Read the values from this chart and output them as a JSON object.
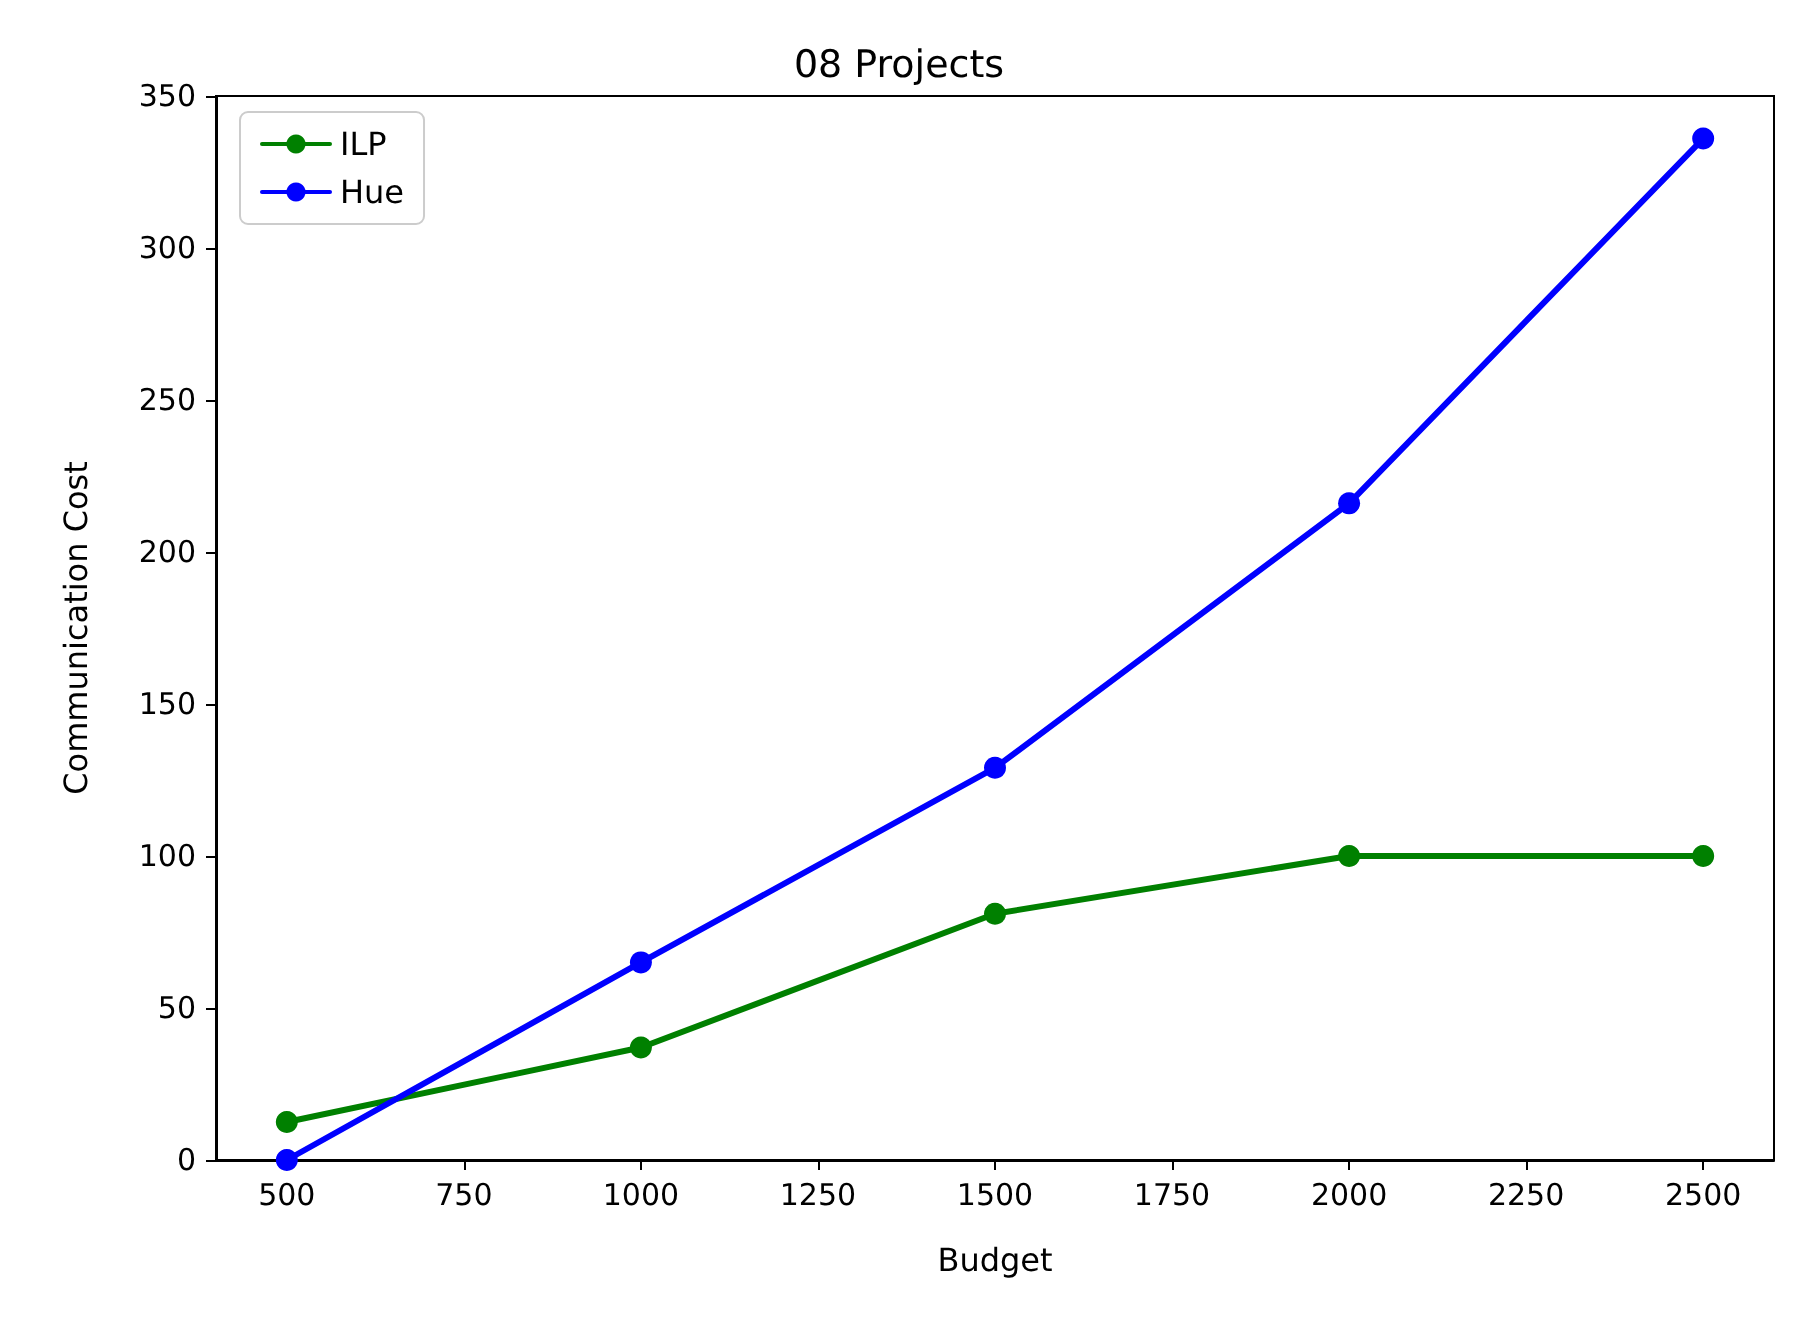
{
  "chart_data": {
    "type": "line",
    "title": "08 Projects",
    "xlabel": "Budget",
    "ylabel": "Communication Cost",
    "x": [
      500,
      1000,
      1500,
      2000,
      2500
    ],
    "series": [
      {
        "name": "ILP",
        "color": "#008000",
        "values": [
          12.5,
          37,
          81,
          100,
          100
        ]
      },
      {
        "name": "Hue",
        "color": "#0000ff",
        "values": [
          0,
          65,
          129,
          216,
          336
        ]
      }
    ],
    "xlim": [
      400,
      2600
    ],
    "xticks": [
      500,
      750,
      1000,
      1250,
      1500,
      1750,
      2000,
      2250,
      2500
    ],
    "ylim": [
      0,
      350
    ],
    "yticks": [
      0,
      50,
      100,
      150,
      200,
      250,
      300,
      350
    ],
    "grid": false,
    "legend": "top left",
    "marker": "circle",
    "line_style": "solid"
  }
}
